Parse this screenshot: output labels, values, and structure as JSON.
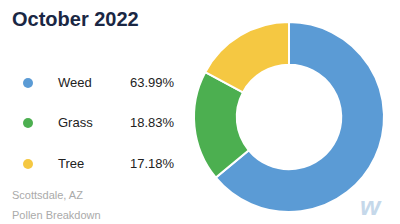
{
  "chart_data": {
    "type": "pie",
    "title": "October 2022",
    "subtitle": [
      "Scottsdale, AZ",
      "Pollen Breakdown"
    ],
    "categories": [
      "Weed",
      "Grass",
      "Tree"
    ],
    "values": [
      63.99,
      18.83,
      17.18
    ],
    "value_labels": [
      "63.99%",
      "18.83%",
      "17.18%"
    ],
    "colors": [
      "#5b9bd5",
      "#4caf50",
      "#f5c842"
    ],
    "annotations": [
      "w"
    ]
  }
}
